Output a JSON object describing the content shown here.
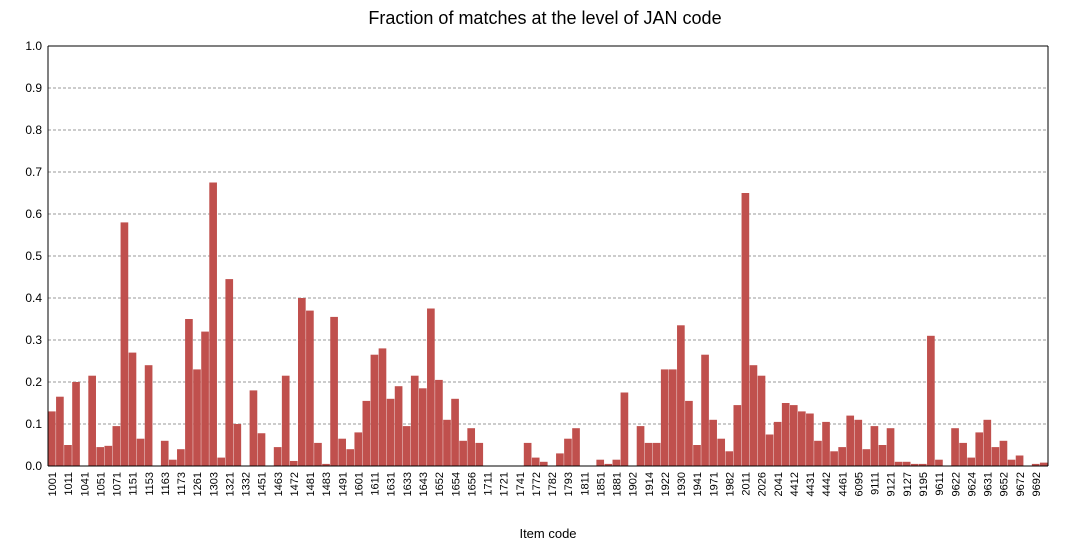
{
  "chart_data": {
    "type": "bar",
    "title": "Fraction of matches at the level of JAN code",
    "x_label": "Item code",
    "categories": [
      "1001",
      null,
      "1011",
      null,
      "1041",
      null,
      "1051",
      null,
      "1071",
      null,
      "1151",
      null,
      "1153",
      null,
      "1163",
      null,
      "1173",
      null,
      "1261",
      null,
      "1303",
      null,
      "1321",
      null,
      "1332",
      null,
      "1451",
      null,
      "1463",
      null,
      "1472",
      null,
      "1481",
      null,
      "1483",
      null,
      "1491",
      null,
      "1601",
      null,
      "1611",
      null,
      "1631",
      null,
      "1633",
      null,
      "1643",
      null,
      "1652",
      null,
      "1654",
      null,
      "1656",
      null,
      "1711",
      null,
      "1721",
      null,
      "1741",
      null,
      "1772",
      null,
      "1782",
      null,
      "1793",
      null,
      "1811",
      null,
      "1851",
      null,
      "1881",
      null,
      "1902",
      null,
      "1914",
      null,
      "1922",
      null,
      "1930",
      null,
      "1941",
      null,
      "1971",
      null,
      "1982",
      null,
      "2011",
      null,
      "2026",
      null,
      "2041",
      null,
      "4412",
      null,
      "4431",
      null,
      "4442",
      null,
      "4461",
      null,
      "6095",
      null,
      "9111",
      null,
      "9121",
      null,
      "9127",
      null,
      "9195",
      null,
      "9611",
      null,
      "9622",
      null,
      "9624",
      null,
      "9631",
      null,
      "9652",
      null,
      "9672",
      null,
      "9692",
      null
    ],
    "values": [
      0.13,
      0.165,
      0.05,
      0.2,
      0,
      0.215,
      0.045,
      0.048,
      0.095,
      0.58,
      0.27,
      0.065,
      0.24,
      0,
      0.06,
      0.015,
      0.04,
      0.35,
      0.23,
      0.32,
      0.675,
      0.02,
      0.445,
      0.1,
      0,
      0.18,
      0.078,
      0,
      0.045,
      0.215,
      0.012,
      0.4,
      0.37,
      0.055,
      0.005,
      0.355,
      0.065,
      0.04,
      0.08,
      0.155,
      0.265,
      0.28,
      0.16,
      0.19,
      0.095,
      0.215,
      0.185,
      0.375,
      0.205,
      0.11,
      0.16,
      0.06,
      0.09,
      0.055,
      0,
      0,
      0,
      0,
      0,
      0.055,
      0.02,
      0.01,
      0,
      0.03,
      0.065,
      0.09,
      0,
      0,
      0.015,
      0.005,
      0.015,
      0.175,
      0,
      0.095,
      0.055,
      0.055,
      0.23,
      0.23,
      0.335,
      0.155,
      0.05,
      0.265,
      0.11,
      0.065,
      0.035,
      0.145,
      0.65,
      0.24,
      0.215,
      0.075,
      0.105,
      0.15,
      0.145,
      0.13,
      0.125,
      0.06,
      0.105,
      0.035,
      0.045,
      0.12,
      0.11,
      0.04,
      0.095,
      0.05,
      0.09,
      0.01,
      0.01,
      0.005,
      0.005,
      0.31,
      0.015,
      0,
      0.09,
      0.055,
      0.02,
      0.08,
      0.11,
      0.045,
      0.06,
      0.015,
      0.025,
      0,
      0.005,
      0.008
    ],
    "color": "#c0504d",
    "ylim": [
      0,
      1
    ],
    "yticks": [
      {
        "value": 0,
        "label": "0.0"
      },
      0.1,
      0.2,
      0.3,
      0.4,
      0.5,
      0.6,
      0.7,
      0.8,
      0.9,
      {
        "value": 1,
        "label": "1.0"
      }
    ],
    "grid": true
  }
}
